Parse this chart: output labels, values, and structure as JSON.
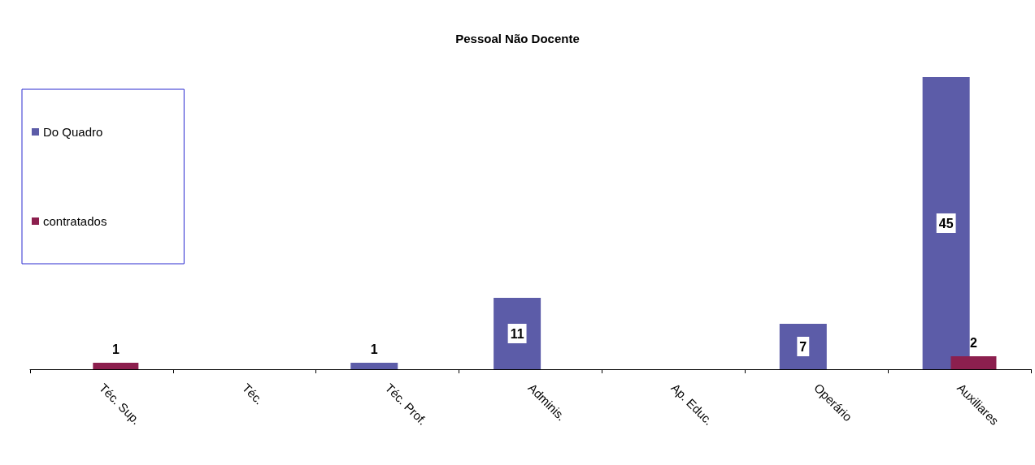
{
  "chart_data": {
    "type": "bar",
    "title": "Pessoal Não Docente",
    "categories": [
      "Téc. Sup.",
      "Téc.",
      "Téc. Prof.",
      "Adminis.",
      "Ap. Educ.",
      "Operário",
      "Auxiliares"
    ],
    "series": [
      {
        "name": "Do Quadro",
        "color": "#5c5ca8",
        "values": [
          null,
          null,
          1,
          11,
          null,
          7,
          45
        ]
      },
      {
        "name": "contratados",
        "color": "#8c1f4e",
        "values": [
          1,
          null,
          null,
          null,
          null,
          null,
          2
        ]
      }
    ],
    "data_labels": true,
    "legend": "left"
  }
}
